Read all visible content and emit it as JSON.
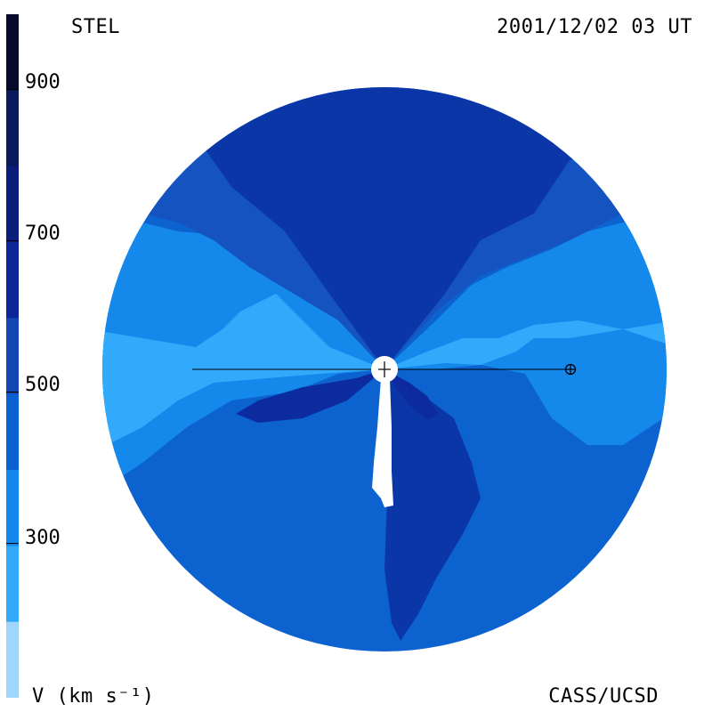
{
  "header": {
    "observatory": "STEL",
    "timestamp": "2001/12/02 03 UT"
  },
  "footer": {
    "units": "V (km s⁻¹)",
    "credit": "CASS/UCSD"
  },
  "colorbar": {
    "ticks": [
      "900",
      "700",
      "500",
      "300"
    ],
    "levels": [
      {
        "max": 1000,
        "color": "#060b2e"
      },
      {
        "max": 900,
        "color": "#0a1a5c"
      },
      {
        "max": 800,
        "color": "#0b1d7a"
      },
      {
        "max": 700,
        "color": "#0c2697"
      },
      {
        "max": 600,
        "color": "#1546b5"
      },
      {
        "max": 500,
        "color": "#0a61cf"
      },
      {
        "max": 400,
        "color": "#1388ec"
      },
      {
        "max": 300,
        "color": "#32aafc"
      },
      {
        "max": 200,
        "color": "#9fd6fb"
      }
    ]
  },
  "colors": {
    "very_fast": "#0c2b9e",
    "fast": "#0b36a8",
    "medium_fast": "#1553c0",
    "medium": "#0c63cf",
    "slow": "#1588ec",
    "very_slow": "#32aafc",
    "sun": "#ffffff",
    "earth_line": "#000000"
  },
  "markers": {
    "sun_symbol": "sun-icon",
    "earth_symbol": "earth-icon"
  }
}
